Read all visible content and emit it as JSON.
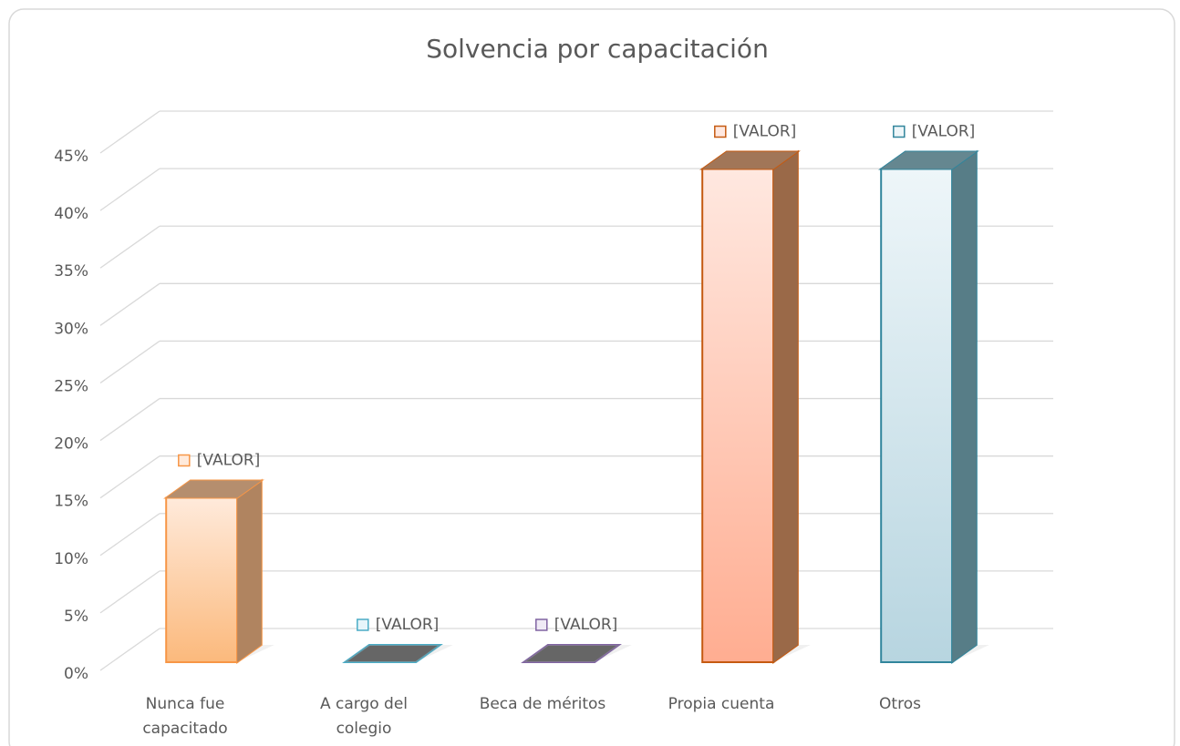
{
  "chart_data": {
    "type": "bar3d",
    "title": "Solvencia por capacitación",
    "categories": [
      "Nunca fue capacitado",
      "A cargo del colegio",
      "Beca de méritos",
      "Propia cuenta",
      "Otros"
    ],
    "values": [
      14.3,
      0,
      0,
      42.9,
      42.9
    ],
    "value_labels": [
      "[VALOR]",
      "[VALOR]",
      "[VALOR]",
      "[VALOR]",
      "[VALOR]"
    ],
    "colors": [
      "#f79646",
      "#4bacc6",
      "#8064a2",
      "#c55a11",
      "#31859c"
    ],
    "light_colors": [
      "#ffeadb",
      "#e6f5fa",
      "#efeaf5",
      "#ffe8e0",
      "#eef6f9"
    ],
    "mid_colors": [
      "#fbb97c",
      "#9ad3e3",
      "#b9a6d1",
      "#ffad91",
      "#b7d5e0"
    ],
    "ylim": [
      0,
      45
    ],
    "yticks": [
      {
        "value": 0,
        "label": "0%"
      },
      {
        "value": 5,
        "label": "5%"
      },
      {
        "value": 10,
        "label": "10%"
      },
      {
        "value": 15,
        "label": "15%"
      },
      {
        "value": 20,
        "label": "20%"
      },
      {
        "value": 25,
        "label": "25%"
      },
      {
        "value": 30,
        "label": "30%"
      },
      {
        "value": 35,
        "label": "35%"
      },
      {
        "value": 40,
        "label": "40%"
      },
      {
        "value": 45,
        "label": "45%"
      }
    ],
    "grid": true
  }
}
